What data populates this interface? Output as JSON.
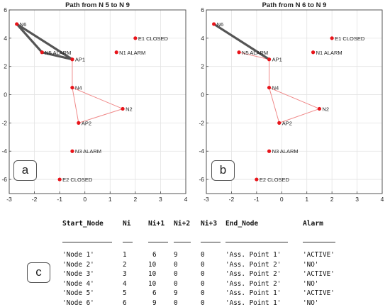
{
  "chart_data": [
    {
      "type": "scatter",
      "panel_label": "a",
      "title": "Path from N 5 to N 9",
      "xlim": [
        -3,
        4
      ],
      "ylim": [
        -7,
        6
      ],
      "xticks": [
        -3,
        -2,
        -1,
        0,
        1,
        2,
        3,
        4
      ],
      "yticks": [
        -6,
        -4,
        -2,
        0,
        2,
        4,
        6
      ],
      "grid": true,
      "nodes": [
        {
          "label": "N6",
          "x": -2.7,
          "y": 5.0
        },
        {
          "label": "E1 CLOSED",
          "x": 2.0,
          "y": 4.0
        },
        {
          "label": "N5 ALARM",
          "x": -1.7,
          "y": 3.0
        },
        {
          "label": "N1 ALARM",
          "x": 1.25,
          "y": 3.0
        },
        {
          "label": "AP1",
          "x": -0.5,
          "y": 2.5
        },
        {
          "label": "N4",
          "x": -0.5,
          "y": 0.5
        },
        {
          "label": "N2",
          "x": 1.5,
          "y": -1.0
        },
        {
          "label": "AP2",
          "x": -0.25,
          "y": -2.0
        },
        {
          "label": "N3 ALARM",
          "x": -0.5,
          "y": -4.0
        },
        {
          "label": "E2 CLOSED",
          "x": -1.0,
          "y": -6.0
        }
      ],
      "thick_path": [
        [
          "N6",
          "N5 ALARM"
        ],
        [
          "N5 ALARM",
          "AP1"
        ],
        [
          "N6",
          "AP1"
        ]
      ],
      "thin_edges": [
        [
          "AP1",
          "N4"
        ],
        [
          "N4",
          "N2"
        ],
        [
          "N4",
          "AP2"
        ],
        [
          "N2",
          "AP2"
        ]
      ],
      "colors": {
        "node": "#e8141a",
        "thin_edge": "#f08a8a",
        "thick_path": "#555555"
      }
    },
    {
      "type": "scatter",
      "panel_label": "b",
      "title": "Path from N 6 to N 9",
      "xlim": [
        -3,
        4
      ],
      "ylim": [
        -7,
        6
      ],
      "xticks": [
        -3,
        -2,
        -1,
        0,
        1,
        2,
        3,
        4
      ],
      "yticks": [
        -6,
        -4,
        -2,
        0,
        2,
        4,
        6
      ],
      "grid": true,
      "nodes": [
        {
          "label": "N6",
          "x": -2.7,
          "y": 5.0
        },
        {
          "label": "E1 CLOSED",
          "x": 2.0,
          "y": 4.0
        },
        {
          "label": "N5 ALARM",
          "x": -1.7,
          "y": 3.0
        },
        {
          "label": "N1 ALARM",
          "x": 1.25,
          "y": 3.0
        },
        {
          "label": "AP1",
          "x": -0.5,
          "y": 2.5
        },
        {
          "label": "N4",
          "x": -0.5,
          "y": 0.5
        },
        {
          "label": "N2",
          "x": 1.5,
          "y": -1.0
        },
        {
          "label": "AP2",
          "x": -0.1,
          "y": -2.0
        },
        {
          "label": "N3 ALARM",
          "x": -0.5,
          "y": -4.0
        },
        {
          "label": "E2 CLOSED",
          "x": -1.0,
          "y": -6.0
        }
      ],
      "thick_path": [
        [
          "N6",
          "AP1"
        ]
      ],
      "thin_edges": [
        [
          "N5 ALARM",
          "AP1"
        ],
        [
          "AP1",
          "N4"
        ],
        [
          "N4",
          "N2"
        ],
        [
          "N4",
          "AP2"
        ],
        [
          "N2",
          "AP2"
        ]
      ],
      "colors": {
        "node": "#e8141a",
        "thin_edge": "#f08a8a",
        "thick_path": "#555555"
      }
    },
    {
      "type": "table",
      "panel_label": "c",
      "columns": [
        "Start_Node",
        "Ni",
        "Ni+1",
        "Ni+2",
        "Ni+3",
        "End_Node",
        "Alarm"
      ],
      "rows": [
        [
          "'Node 1'",
          "1",
          "6",
          "9",
          "0",
          "'Ass. Point 1'",
          "'ACTIVE'"
        ],
        [
          "'Node 2'",
          "2",
          "10",
          "0",
          "0",
          "'Ass. Point 2'",
          "'NO'"
        ],
        [
          "'Node 3'",
          "3",
          "10",
          "0",
          "0",
          "'Ass. Point 2'",
          "'ACTIVE'"
        ],
        [
          "'Node 4'",
          "4",
          "10",
          "0",
          "0",
          "'Ass. Point 2'",
          "'NO'"
        ],
        [
          "'Node 5'",
          "5",
          "6",
          "9",
          "0",
          "'Ass. Point 1'",
          "'ACTIVE'"
        ],
        [
          "'Node 6'",
          "6",
          "9",
          "0",
          "0",
          "'Ass. Point 1'",
          "'NO'"
        ]
      ]
    }
  ]
}
